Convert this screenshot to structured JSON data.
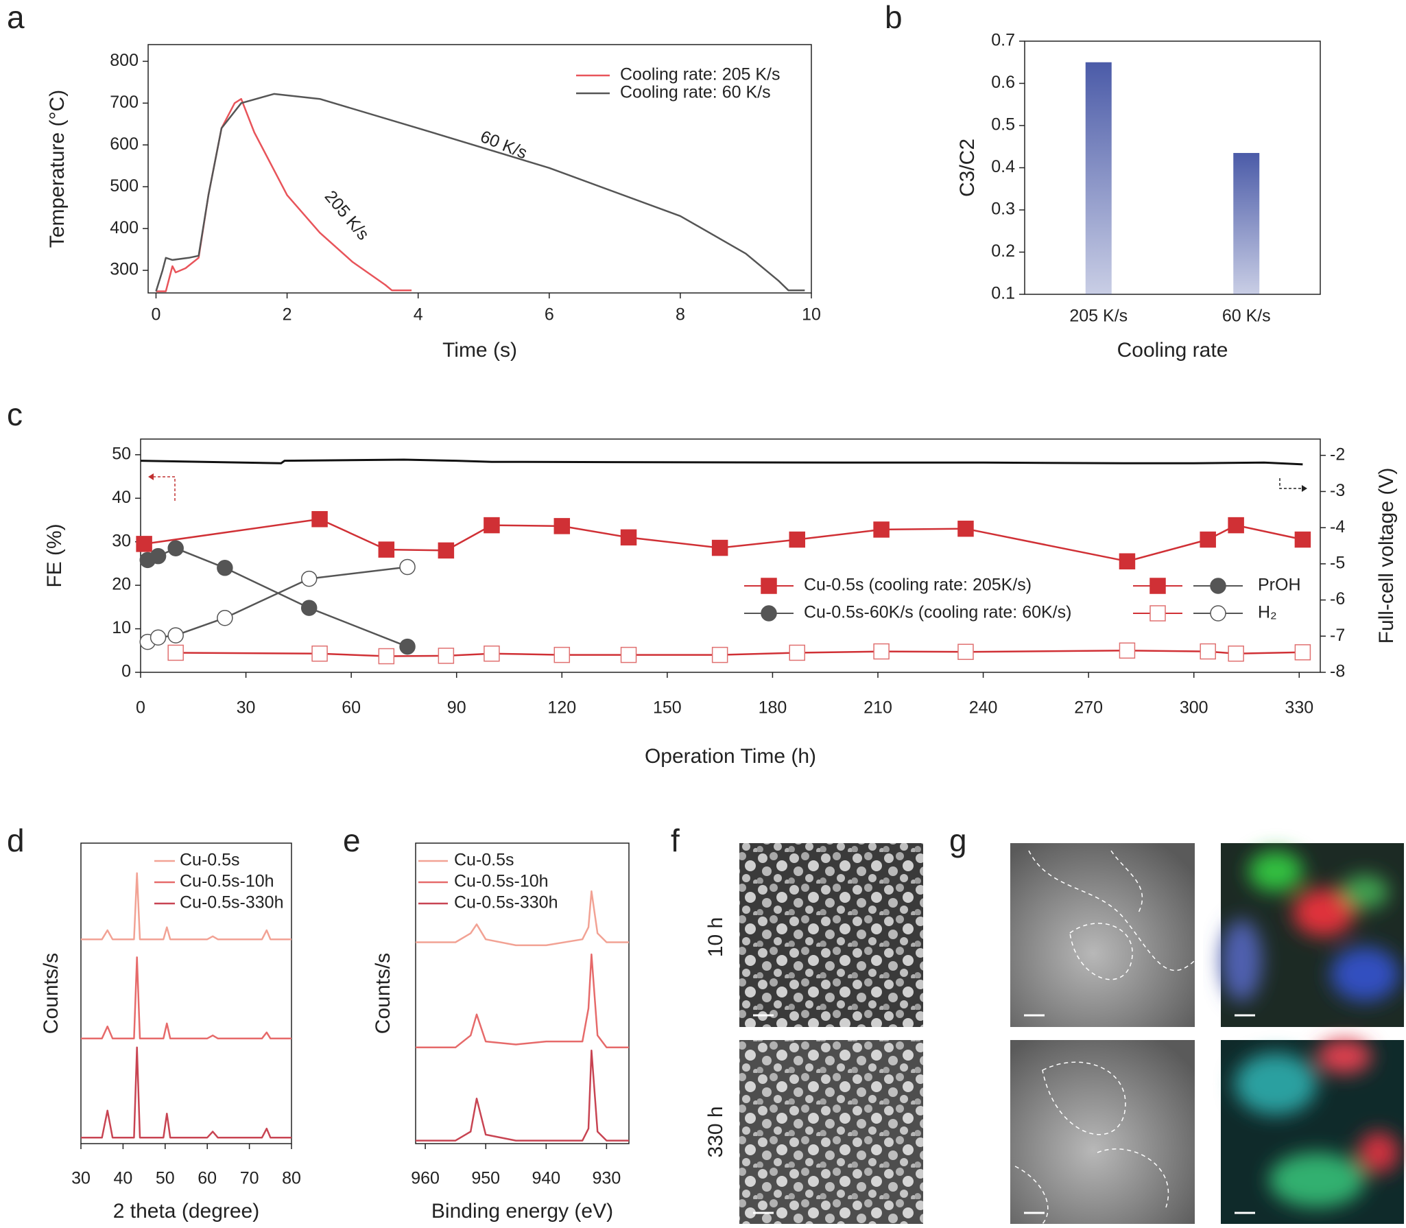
{
  "chart_data": [
    {
      "type": "line",
      "panel": "a",
      "xlabel": "Time (s)",
      "ylabel": "Temperature (°C)",
      "xlim": [
        -0.12,
        10
      ],
      "xticks": [
        0,
        2,
        4,
        6,
        8,
        10
      ],
      "ylim": [
        246,
        840
      ],
      "yticks": [
        300,
        400,
        500,
        600,
        700,
        800
      ],
      "annotations": [
        "60 K/s",
        "205 K/s"
      ],
      "series": [
        {
          "name": "Cooling rate: 205 K/s",
          "color": "#e8545a",
          "x": [
            0,
            0.15,
            0.25,
            0.3,
            0.45,
            0.65,
            0.8,
            1.0,
            1.2,
            1.3,
            1.5,
            2.0,
            2.5,
            3.0,
            3.5,
            3.6,
            3.9
          ],
          "values": [
            250,
            250,
            310,
            295,
            305,
            330,
            480,
            640,
            700,
            710,
            630,
            480,
            390,
            320,
            265,
            252,
            252
          ]
        },
        {
          "name": "Cooling rate: 60 K/s",
          "color": "#555555",
          "x": [
            0,
            0.1,
            0.15,
            0.25,
            0.5,
            0.65,
            0.8,
            1.0,
            1.3,
            1.8,
            2.5,
            4,
            6,
            8,
            9,
            9.5,
            9.65,
            9.9
          ],
          "values": [
            250,
            300,
            330,
            325,
            330,
            335,
            480,
            640,
            700,
            722,
            710,
            640,
            545,
            430,
            340,
            275,
            252,
            252
          ]
        }
      ]
    },
    {
      "type": "bar",
      "panel": "b",
      "xlabel": "Cooling rate",
      "ylabel": "C3/C2",
      "categories": [
        "205 K/s",
        "60 K/s"
      ],
      "values": [
        0.65,
        0.435
      ],
      "color": "#4b5ba8",
      "ylim": [
        0.1,
        0.7
      ],
      "yticks": [
        0.1,
        0.2,
        0.3,
        0.4,
        0.5,
        0.6,
        0.7
      ]
    },
    {
      "type": "line",
      "panel": "c",
      "xlabel": "Operation Time (h)",
      "ylabel": "FE (%)",
      "y2label": "Full-cell voltage (V)",
      "xlim": [
        0,
        336
      ],
      "xticks": [
        0,
        30,
        60,
        90,
        120,
        150,
        180,
        210,
        240,
        270,
        300,
        330
      ],
      "ylim": [
        0,
        53.6
      ],
      "yticks": [
        0,
        10,
        20,
        30,
        40,
        50
      ],
      "y2lim": [
        -8,
        -1.55
      ],
      "y2ticks": [
        -2,
        -3,
        -4,
        -5,
        -6,
        -7,
        -8
      ],
      "series": [
        {
          "name": "Cu-0.5s (cooling rate: 205K/s)",
          "product": "PrOH",
          "color": "#d03035",
          "marker": "square",
          "filled": true,
          "x": [
            1,
            51,
            70,
            87,
            100,
            120,
            139,
            165,
            187,
            211,
            235,
            281,
            304,
            312,
            331
          ],
          "values": [
            29.5,
            35.2,
            28.2,
            28,
            33.8,
            33.6,
            31,
            28.6,
            30.5,
            32.8,
            33,
            25.5,
            30.5,
            33.8,
            30.5
          ]
        },
        {
          "name": "Cu-0.5s (cooling rate: 205K/s)",
          "product": "H₂",
          "color": "#d03035",
          "marker": "square",
          "filled": false,
          "x": [
            10,
            51,
            70,
            87,
            100,
            120,
            139,
            165,
            187,
            211,
            235,
            281,
            304,
            312,
            331
          ],
          "values": [
            4.5,
            4.3,
            3.7,
            3.8,
            4.3,
            4,
            4,
            4,
            4.5,
            4.8,
            4.7,
            5,
            4.8,
            4.3,
            4.6
          ]
        },
        {
          "name": "Cu-0.5s-60K/s (cooling rate: 60K/s)",
          "product": "PrOH",
          "color": "#555555",
          "marker": "circle",
          "filled": true,
          "x": [
            2,
            5,
            10,
            24,
            48,
            76
          ],
          "values": [
            25.8,
            26.7,
            28.5,
            24,
            14.8,
            5.9
          ]
        },
        {
          "name": "Cu-0.5s-60K/s (cooling rate: 60K/s)",
          "product": "H₂",
          "color": "#555555",
          "marker": "circle",
          "filled": false,
          "x": [
            2,
            5,
            10,
            24,
            48,
            76
          ],
          "values": [
            7,
            8,
            8.5,
            12.5,
            21.5,
            24.2
          ]
        },
        {
          "color": "#111111",
          "axis": "y2",
          "x": [
            0,
            40,
            41,
            75,
            90,
            100,
            200,
            240,
            280,
            300,
            320,
            331
          ],
          "values": [
            -2.15,
            -2.22,
            -2.15,
            -2.12,
            -2.15,
            -2.18,
            -2.2,
            -2.2,
            -2.22,
            -2.22,
            -2.2,
            -2.25
          ]
        }
      ]
    },
    {
      "type": "line",
      "panel": "d",
      "xlabel": "2 theta (degree)",
      "ylabel": "Counts/s",
      "xlim": [
        30,
        80
      ],
      "xticks": [
        30,
        40,
        50,
        60,
        70,
        80
      ],
      "ylim": [
        0,
        100
      ],
      "x": [
        30,
        35,
        36.3,
        37.5,
        42.6,
        43.3,
        44,
        49.6,
        50.4,
        51.2,
        60,
        61.3,
        62.5,
        73,
        74.1,
        75,
        80
      ],
      "series": [
        {
          "name": "Cu-0.5s",
          "color": "#f2a294",
          "values": [
            68,
            68,
            71,
            68,
            68,
            90,
            68,
            68,
            72,
            68,
            68,
            69,
            68,
            68,
            71,
            68,
            68
          ]
        },
        {
          "name": "Cu-0.5s-10h",
          "color": "#e66a6a",
          "values": [
            35,
            35,
            39,
            35,
            35,
            62,
            35,
            35,
            40,
            35,
            35,
            36,
            35,
            35,
            37,
            35,
            35
          ]
        },
        {
          "name": "Cu-0.5s-330h",
          "color": "#c84452",
          "values": [
            2,
            2,
            11,
            2,
            2,
            32,
            2,
            2,
            10,
            2,
            2,
            4,
            2,
            2,
            5,
            2,
            2
          ]
        }
      ]
    },
    {
      "type": "line",
      "panel": "e",
      "xlabel": "Binding energy (eV)",
      "ylabel": "Counts/s",
      "xlim": [
        961.6,
        926.3
      ],
      "xticks": [
        960,
        950,
        940,
        930
      ],
      "ylim": [
        0,
        100
      ],
      "x": [
        961.6,
        955,
        952.5,
        951.5,
        950,
        945,
        940,
        934,
        933,
        932.5,
        931.5,
        930,
        926.3
      ],
      "series": [
        {
          "name": "Cu-0.5s",
          "color": "#f2a294",
          "values": [
            67,
            67,
            70,
            73,
            68,
            66,
            66,
            68,
            72,
            84,
            70,
            67,
            67
          ]
        },
        {
          "name": "Cu-0.5s-10h",
          "color": "#e66a6a",
          "values": [
            32,
            32,
            36,
            43,
            34,
            33,
            34,
            34,
            45,
            63,
            36,
            32,
            32
          ]
        },
        {
          "name": "Cu-0.5s-330h",
          "color": "#c84452",
          "values": [
            1,
            1,
            4,
            15,
            3,
            1,
            1,
            1,
            5,
            31,
            4,
            1,
            1
          ]
        }
      ]
    }
  ],
  "figure_panels": {
    "f": {
      "label": "f",
      "rows": [
        "10 h",
        "330 h"
      ]
    },
    "g": {
      "label": "g"
    }
  }
}
